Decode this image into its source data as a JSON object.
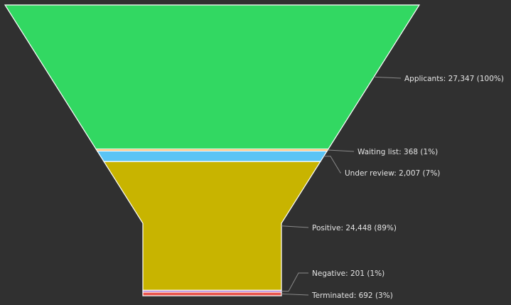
{
  "chart_data": {
    "type": "funnel",
    "title": "",
    "stages": [
      {
        "name": "Applicants",
        "value": 27347,
        "percent": "100%",
        "label": "Applicants: 27,347 (100%)",
        "color": "#32d862"
      },
      {
        "name": "Waiting list",
        "value": 368,
        "percent": "1%",
        "label": "Waiting list: 368 (1%)",
        "color": "#f5a33c"
      },
      {
        "name": "Under review",
        "value": 2007,
        "percent": "7%",
        "label": "Under review: 2,007 (7%)",
        "color": "#5bc4f5"
      },
      {
        "name": "Positive",
        "value": 24448,
        "percent": "89%",
        "label": "Positive: 24,448 (89%)",
        "color": "#c8b400"
      },
      {
        "name": "Negative",
        "value": 201,
        "percent": "1%",
        "label": "Negative: 201 (1%)",
        "color": "#9b59d0"
      },
      {
        "name": "Terminated",
        "value": 692,
        "percent": "3%",
        "label": "Terminated: 692 (3%)",
        "color": "#e8524a"
      }
    ]
  }
}
